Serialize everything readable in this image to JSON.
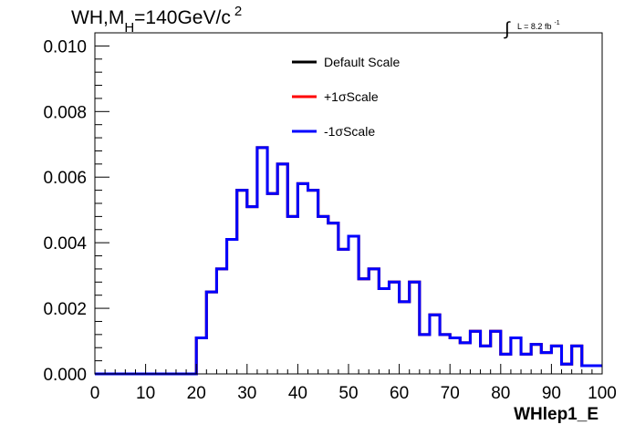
{
  "chart_data": {
    "type": "line",
    "drawstyle": "steps",
    "title": "WH,M",
    "title_sub": "H",
    "title_rest": "=140GeV/c",
    "title_sup": "2",
    "lumi_integral": "∫",
    "lumi_text": "L = 8.2 fb",
    "lumi_sup": "-1",
    "xlabel": "WHlep1_E",
    "ylabel": "",
    "xlim": [
      0,
      100
    ],
    "ylim": [
      0,
      0.0104
    ],
    "x_ticks": [
      "0",
      "10",
      "20",
      "30",
      "40",
      "50",
      "60",
      "70",
      "80",
      "90",
      "100"
    ],
    "x_tick_values": [
      0,
      10,
      20,
      30,
      40,
      50,
      60,
      70,
      80,
      90,
      100
    ],
    "y_ticks": [
      "0.000",
      "0.002",
      "0.004",
      "0.006",
      "0.008",
      "0.010"
    ],
    "y_tick_values": [
      0,
      0.002,
      0.004,
      0.006,
      0.008,
      0.01
    ],
    "grid": false,
    "legend_position": "top-center",
    "bin_edges": [
      0,
      2,
      4,
      6,
      8,
      10,
      12,
      14,
      16,
      18,
      20,
      22,
      24,
      26,
      28,
      30,
      32,
      34,
      36,
      38,
      40,
      42,
      44,
      46,
      48,
      50,
      52,
      54,
      56,
      58,
      60,
      62,
      64,
      66,
      68,
      70,
      72,
      74,
      76,
      78,
      80,
      82,
      84,
      86,
      88,
      90,
      92,
      94,
      96,
      98,
      100
    ],
    "series": [
      {
        "name": "Default Scale",
        "color": "#000000",
        "values": [
          0,
          0,
          0,
          0,
          0,
          0,
          0,
          0,
          0,
          0,
          0.0011,
          0.0025,
          0.0032,
          0.0041,
          0.0056,
          0.0051,
          0.0069,
          0.0055,
          0.0064,
          0.0048,
          0.0058,
          0.0056,
          0.0048,
          0.0046,
          0.0038,
          0.0042,
          0.0029,
          0.0032,
          0.0026,
          0.0028,
          0.0022,
          0.0028,
          0.0012,
          0.0018,
          0.0012,
          0.0011,
          0.00095,
          0.0013,
          0.00085,
          0.0013,
          0.0006,
          0.0011,
          0.0006,
          0.0009,
          0.00065,
          0.00085,
          0.0003,
          0.00085,
          0.00025,
          0.00025
        ]
      },
      {
        "name": "+1σScale",
        "color": "#ff0000",
        "values": [
          0,
          0,
          0,
          0,
          0,
          0,
          0,
          0,
          0,
          0,
          0.0011,
          0.0025,
          0.0032,
          0.0041,
          0.0056,
          0.0051,
          0.0069,
          0.0055,
          0.0064,
          0.0048,
          0.0058,
          0.0056,
          0.0048,
          0.0046,
          0.0038,
          0.0042,
          0.0029,
          0.0032,
          0.0026,
          0.0028,
          0.0022,
          0.0028,
          0.0012,
          0.0018,
          0.0012,
          0.0011,
          0.00095,
          0.0013,
          0.00085,
          0.0013,
          0.0006,
          0.0011,
          0.0006,
          0.0009,
          0.00065,
          0.00085,
          0.0003,
          0.00085,
          0.00025,
          0.00025
        ]
      },
      {
        "name": "-1σScale",
        "color": "#0000ff",
        "values": [
          0,
          0,
          0,
          0,
          0,
          0,
          0,
          0,
          0,
          0,
          0.0011,
          0.0025,
          0.0032,
          0.0041,
          0.0056,
          0.0051,
          0.0069,
          0.0055,
          0.0064,
          0.0048,
          0.0058,
          0.0056,
          0.0048,
          0.0046,
          0.0038,
          0.0042,
          0.0029,
          0.0032,
          0.0026,
          0.0028,
          0.0022,
          0.0028,
          0.0012,
          0.0018,
          0.0012,
          0.0011,
          0.00095,
          0.0013,
          0.00085,
          0.0013,
          0.0006,
          0.0011,
          0.0006,
          0.0009,
          0.00065,
          0.00085,
          0.0003,
          0.00085,
          0.00025,
          0.00025
        ]
      }
    ]
  }
}
